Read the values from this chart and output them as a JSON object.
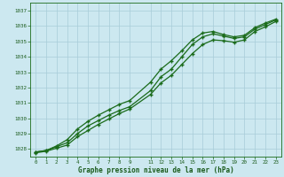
{
  "background_color": "#cce8f0",
  "grid_color": "#a8ccd8",
  "line_color": "#1a6b1a",
  "title": "Graphe pression niveau de la mer (hPa)",
  "ylim": [
    1027.5,
    1037.5
  ],
  "yticks": [
    1028,
    1029,
    1030,
    1031,
    1032,
    1033,
    1034,
    1035,
    1036,
    1037
  ],
  "xlim": [
    -0.5,
    23.5
  ],
  "x_ticks": [
    0,
    1,
    2,
    3,
    4,
    5,
    6,
    7,
    8,
    9,
    11,
    12,
    13,
    14,
    15,
    16,
    17,
    18,
    19,
    20,
    21,
    22,
    23
  ],
  "line1_x": [
    0,
    1,
    2,
    3,
    4,
    5,
    6,
    7,
    8,
    9,
    11,
    12,
    13,
    14,
    15,
    16,
    17,
    18,
    19,
    20,
    21,
    22,
    23
  ],
  "line1_y": [
    1027.8,
    1027.9,
    1028.2,
    1028.6,
    1029.3,
    1029.8,
    1030.2,
    1030.55,
    1030.9,
    1031.15,
    1032.35,
    1033.2,
    1033.75,
    1034.4,
    1035.1,
    1035.55,
    1035.65,
    1035.45,
    1035.3,
    1035.4,
    1035.9,
    1036.2,
    1036.45
  ],
  "line2_x": [
    0,
    1,
    2,
    3,
    4,
    5,
    6,
    7,
    8,
    9,
    11,
    12,
    13,
    14,
    15,
    16,
    17,
    18,
    19,
    20,
    21,
    22,
    23
  ],
  "line2_y": [
    1027.8,
    1027.9,
    1028.15,
    1028.4,
    1029.0,
    1029.5,
    1029.85,
    1030.2,
    1030.5,
    1030.75,
    1031.8,
    1032.7,
    1033.2,
    1034.0,
    1034.8,
    1035.3,
    1035.5,
    1035.35,
    1035.2,
    1035.3,
    1035.8,
    1036.1,
    1036.4
  ],
  "line3_x": [
    0,
    1,
    2,
    3,
    4,
    5,
    6,
    7,
    8,
    9,
    11,
    12,
    13,
    14,
    15,
    16,
    17,
    18,
    19,
    20,
    21,
    22,
    23
  ],
  "line3_y": [
    1027.75,
    1027.85,
    1028.05,
    1028.25,
    1028.8,
    1029.2,
    1029.6,
    1029.95,
    1030.3,
    1030.6,
    1031.55,
    1032.3,
    1032.8,
    1033.5,
    1034.2,
    1034.8,
    1035.1,
    1035.05,
    1034.95,
    1035.1,
    1035.65,
    1035.95,
    1036.3
  ]
}
